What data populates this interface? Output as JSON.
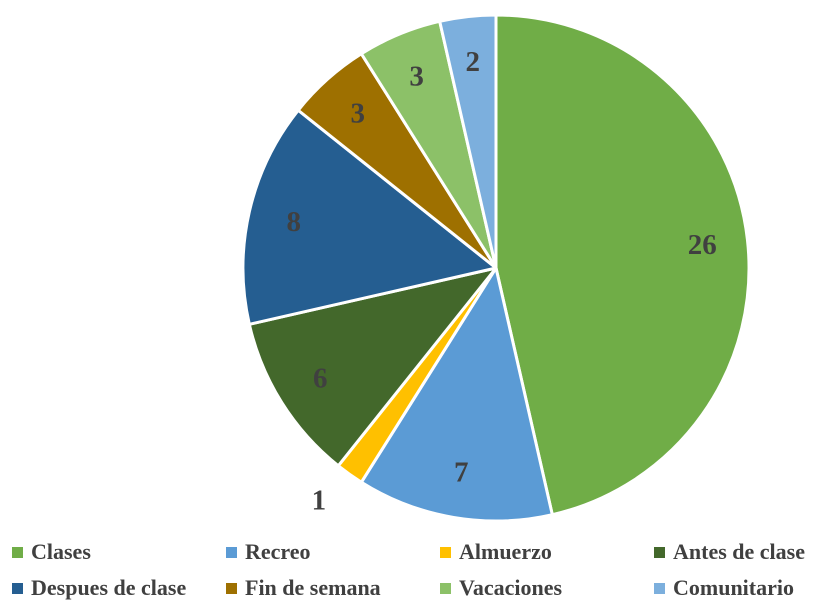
{
  "chart_data": {
    "type": "pie",
    "title": "",
    "categories": [
      "Clases",
      "Recreo",
      "Almuerzo",
      "Antes de clase",
      "Despues de clase",
      "Fin de semana",
      "Vacaciones",
      "Comunitario"
    ],
    "values": [
      26,
      7,
      1,
      6,
      8,
      3,
      3,
      2
    ],
    "value_labels": [
      "26",
      "7",
      "1",
      "6",
      "8",
      "3",
      "3",
      "2"
    ],
    "colors": [
      "#70ad47",
      "#5b9bd5",
      "#ffc000",
      "#43682b",
      "#255e91",
      "#9e7000",
      "#8cc168",
      "#7cafdd"
    ],
    "start_angle_deg": 0,
    "direction": "clockwise",
    "legend_position": "bottom",
    "legend_rows": [
      [
        {
          "label": "Clases",
          "color": "#70ad47"
        },
        {
          "label": "Recreo",
          "color": "#5b9bd5"
        },
        {
          "label": "Almuerzo",
          "color": "#ffc000"
        },
        {
          "label": "Antes de clase",
          "color": "#43682b"
        }
      ],
      [
        {
          "label": "Despues de clase",
          "color": "#255e91"
        },
        {
          "label": "Fin de semana",
          "color": "#9e7000"
        },
        {
          "label": "Vacaciones",
          "color": "#8cc168"
        },
        {
          "label": "Comunitario",
          "color": "#7cafdd"
        }
      ]
    ]
  }
}
